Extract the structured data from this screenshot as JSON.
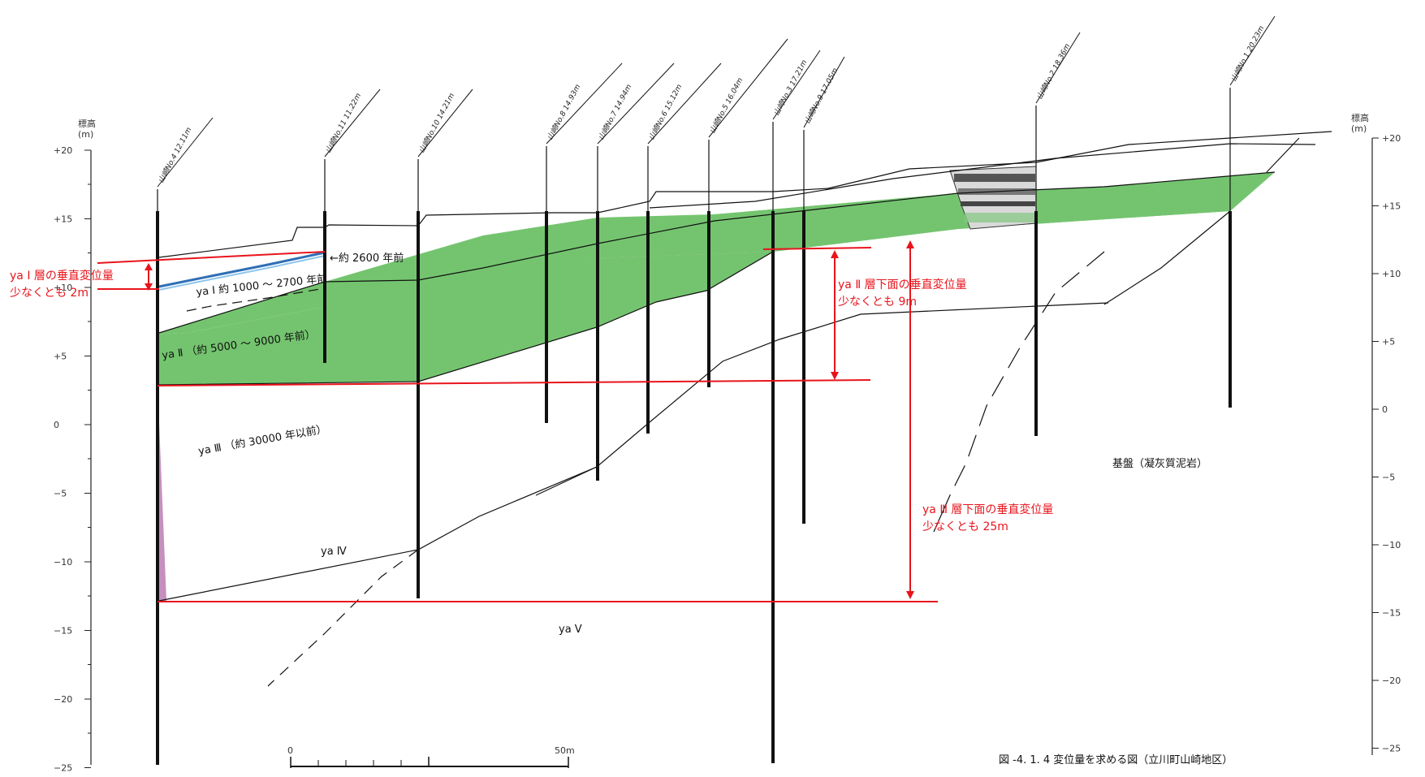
{
  "colors": {
    "layer_ya2": "#74c46f",
    "layer_ya3": "#c58fbe",
    "layer_ya1_top": "#2f6fb6",
    "annotation": "#e8141c",
    "line": "#111111"
  },
  "axis": {
    "unit_label_left": "標高\n(m)",
    "unit_label_right": "標高\n(m)",
    "ticks": [
      "+20",
      "+15",
      "+10",
      "+5",
      "0",
      "−5",
      "−10",
      "−15",
      "−20",
      "−25"
    ],
    "ticks_right": [
      "+20",
      "+15",
      "+10",
      "+5",
      "0",
      "−5",
      "−10",
      "−15",
      "−20",
      "−25"
    ]
  },
  "boreholes": [
    {
      "id": "no4",
      "label": "山崎No.4 12.11m"
    },
    {
      "id": "no11",
      "label": "山崎No.11 11.22m"
    },
    {
      "id": "no10",
      "label": "山崎No.10 14.21m"
    },
    {
      "id": "no8",
      "label": "山崎No.8 14.93m"
    },
    {
      "id": "no7",
      "label": "山崎No.7 14.94m"
    },
    {
      "id": "no6",
      "label": "山崎No.6 15.12m"
    },
    {
      "id": "no5",
      "label": "山崎No.5 16.04m"
    },
    {
      "id": "no3",
      "label": "山崎No.3 17.21m"
    },
    {
      "id": "no9",
      "label": "山崎No.9 17.05m"
    },
    {
      "id": "no2",
      "label": "山崎No.2 18.36m"
    },
    {
      "id": "no1",
      "label": "山崎No.1 20.23m"
    }
  ],
  "layers": {
    "ya1": "ya Ⅰ 約 1000 ～ 2700 年前",
    "ya1_top_age": "←約 2600 年前",
    "ya2": "ya Ⅱ （約 5000 ～ 9000 年前）",
    "ya3": "ya Ⅲ （約 30000 年以前）",
    "ya4": "ya Ⅳ",
    "ya5": "ya Ⅴ",
    "bedrock": "基盤（凝灰質泥岩）"
  },
  "annotations": {
    "ya1_line1": "ya Ⅰ 層の垂直変位量",
    "ya1_line2": "少なくとも 2m",
    "ya2_line1": "ya Ⅱ 層下面の垂直変位量",
    "ya2_line2": "少なくとも 9m",
    "ya3_line1": "ya Ⅲ 層下面の垂直変位量",
    "ya3_line2": "少なくとも 25m"
  },
  "scale_bar": {
    "start": "0",
    "end": "50m"
  },
  "caption": "図 -4. 1. 4 変位量を求める図（立川町山崎地区）"
}
